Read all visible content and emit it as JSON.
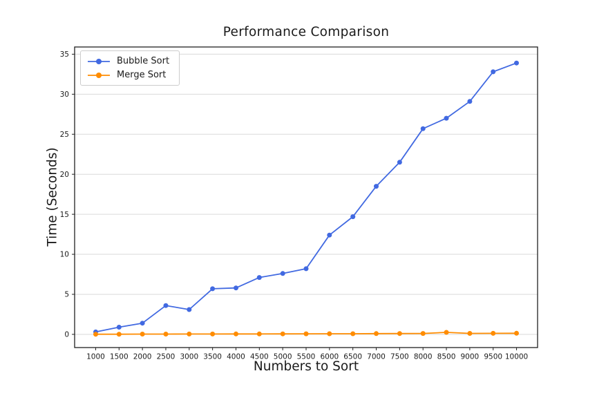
{
  "chart_data": {
    "type": "line",
    "title": "Performance Comparison",
    "xlabel": "Numbers to Sort",
    "ylabel": "Time (Seconds)",
    "x": [
      1000,
      1500,
      2000,
      2500,
      3000,
      3500,
      4000,
      4500,
      5000,
      5500,
      6000,
      6500,
      7000,
      7500,
      8000,
      8500,
      9000,
      9500,
      10000
    ],
    "series": [
      {
        "name": "Bubble Sort",
        "color": "#4169E1",
        "values": [
          0.3,
          0.9,
          1.4,
          3.6,
          3.1,
          5.7,
          5.8,
          7.1,
          7.6,
          8.2,
          12.4,
          14.7,
          18.5,
          21.5,
          25.7,
          27.0,
          29.1,
          32.8,
          33.9
        ]
      },
      {
        "name": "Merge Sort",
        "color": "#FF8C00",
        "values": [
          0.02,
          0.02,
          0.03,
          0.03,
          0.04,
          0.04,
          0.05,
          0.05,
          0.06,
          0.07,
          0.08,
          0.08,
          0.09,
          0.1,
          0.11,
          0.25,
          0.12,
          0.13,
          0.14
        ]
      }
    ],
    "xticks": [
      1000,
      1500,
      2000,
      2500,
      3000,
      3500,
      4000,
      4500,
      5000,
      5500,
      6000,
      6500,
      7000,
      7500,
      8000,
      8500,
      9000,
      9500,
      10000
    ],
    "yticks": [
      0,
      5,
      10,
      15,
      20,
      25,
      30,
      35
    ],
    "xlim": [
      550,
      10450
    ],
    "ylim": [
      -1.65,
      35.9
    ],
    "grid": "horizontal",
    "grid_color": "#d9d9d9",
    "spine_color": "#1f1f1f",
    "tick_color": "#1f1f1f",
    "text_color": "#1a1a1a",
    "background": "#ffffff",
    "legend_position": "upper-left",
    "marker": "circle"
  }
}
